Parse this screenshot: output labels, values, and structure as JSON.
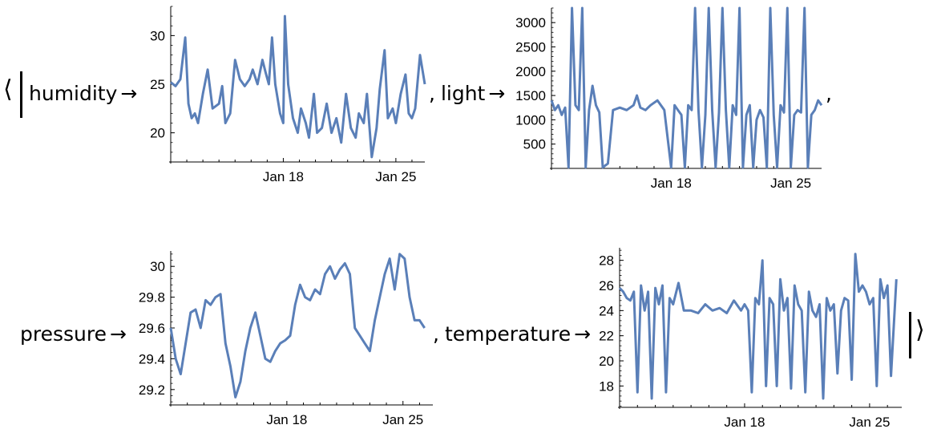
{
  "expression": {
    "open_bracket": "⟨",
    "close_bracket": "⟩",
    "arrow": "→",
    "comma": ",",
    "keys": {
      "humidity": "humidity",
      "light": "light",
      "pressure": "pressure",
      "temperature": "temperature"
    }
  },
  "style": {
    "line_color": "#5a7fb8",
    "axis_color": "#000000"
  },
  "chart_data": [
    {
      "type": "line",
      "key": "humidity",
      "xlim": [
        11.0,
        26.8
      ],
      "ylim": [
        17,
        33
      ],
      "yticks": [
        20,
        25,
        30
      ],
      "xticks": [
        {
          "value": 18,
          "label": "Jan 18"
        },
        {
          "value": 25,
          "label": "Jan 25"
        }
      ],
      "grid": false,
      "x": [
        11.0,
        11.3,
        11.6,
        11.9,
        12.1,
        12.3,
        12.5,
        12.7,
        13.0,
        13.3,
        13.6,
        14.0,
        14.2,
        14.4,
        14.7,
        15.0,
        15.3,
        15.6,
        15.9,
        16.1,
        16.4,
        16.7,
        16.9,
        17.1,
        17.3,
        17.5,
        17.8,
        18.0,
        18.1,
        18.3,
        18.6,
        18.9,
        19.1,
        19.4,
        19.6,
        19.9,
        20.1,
        20.4,
        20.7,
        21.0,
        21.3,
        21.6,
        21.9,
        22.2,
        22.5,
        22.7,
        23.0,
        23.2,
        23.5,
        23.8,
        24.0,
        24.3,
        24.5,
        24.8,
        25.0,
        25.3,
        25.6,
        25.8,
        26.0,
        26.2,
        26.5,
        26.8
      ],
      "values": [
        25.2,
        24.8,
        25.5,
        29.8,
        23.0,
        21.5,
        22.0,
        21.0,
        24.0,
        26.5,
        22.5,
        23.0,
        24.8,
        21.0,
        22.0,
        27.5,
        25.5,
        24.8,
        25.5,
        26.5,
        25.0,
        27.5,
        26.2,
        25.0,
        29.8,
        25.0,
        22.0,
        21.0,
        32.0,
        25.0,
        21.5,
        20.0,
        22.5,
        21.0,
        19.5,
        24.0,
        20.0,
        20.5,
        23.0,
        20.0,
        21.5,
        19.0,
        24.0,
        20.5,
        19.5,
        22.0,
        21.0,
        24.0,
        17.5,
        20.5,
        24.5,
        28.5,
        21.5,
        22.5,
        21.0,
        24.0,
        26.0,
        22.0,
        21.5,
        22.5,
        28.0,
        25.0
      ]
    },
    {
      "type": "line",
      "key": "light",
      "xlim": [
        11.0,
        26.8
      ],
      "ylim": [
        0,
        3300
      ],
      "yticks": [
        500,
        1000,
        1500,
        2000,
        2500,
        3000
      ],
      "xticks": [
        {
          "value": 18,
          "label": "Jan 18"
        },
        {
          "value": 25,
          "label": "Jan 25"
        }
      ],
      "grid": false,
      "x": [
        11.0,
        11.2,
        11.4,
        11.6,
        11.8,
        12.0,
        12.2,
        12.4,
        12.6,
        12.8,
        13.0,
        13.2,
        13.4,
        13.6,
        13.8,
        14.0,
        14.3,
        14.6,
        15.0,
        15.4,
        15.8,
        16.0,
        16.2,
        16.5,
        16.8,
        17.2,
        17.6,
        18.0,
        18.2,
        18.4,
        18.6,
        18.8,
        19.0,
        19.2,
        19.4,
        19.6,
        19.8,
        20.0,
        20.2,
        20.4,
        20.6,
        20.8,
        21.0,
        21.2,
        21.4,
        21.6,
        21.8,
        22.0,
        22.2,
        22.4,
        22.6,
        22.8,
        23.0,
        23.2,
        23.4,
        23.6,
        23.8,
        24.0,
        24.2,
        24.4,
        24.6,
        24.8,
        25.0,
        25.2,
        25.4,
        25.6,
        25.8,
        26.0,
        26.2,
        26.4,
        26.6,
        26.8
      ],
      "values": [
        1400,
        1200,
        1300,
        1100,
        1250,
        20,
        3300,
        1300,
        1200,
        3300,
        20,
        1200,
        1700,
        1300,
        1150,
        20,
        100,
        1200,
        1250,
        1200,
        1300,
        1500,
        1250,
        1200,
        1300,
        1400,
        1200,
        20,
        1300,
        1200,
        1100,
        20,
        1300,
        1200,
        3300,
        1200,
        20,
        1100,
        3300,
        1200,
        20,
        1150,
        3300,
        1200,
        20,
        1300,
        1100,
        3300,
        20,
        1100,
        1300,
        20,
        1000,
        1200,
        1050,
        20,
        3300,
        1100,
        20,
        1300,
        1150,
        3300,
        20,
        1100,
        1200,
        1150,
        3300,
        20,
        1100,
        1200,
        1400,
        1300
      ]
    },
    {
      "type": "line",
      "key": "pressure",
      "xlim": [
        11.0,
        26.8
      ],
      "ylim": [
        29.1,
        30.1
      ],
      "yticks": [
        29.2,
        29.4,
        29.6,
        29.8,
        30.0
      ],
      "xticks": [
        {
          "value": 18,
          "label": "Jan 18"
        },
        {
          "value": 25,
          "label": "Jan 25"
        }
      ],
      "grid": false,
      "x": [
        11.0,
        11.3,
        11.6,
        11.9,
        12.2,
        12.5,
        12.8,
        13.1,
        13.4,
        13.7,
        14.0,
        14.3,
        14.6,
        14.9,
        15.2,
        15.5,
        15.8,
        16.1,
        16.4,
        16.7,
        17.0,
        17.3,
        17.6,
        17.9,
        18.2,
        18.5,
        18.8,
        19.1,
        19.4,
        19.7,
        20.0,
        20.3,
        20.6,
        20.9,
        21.2,
        21.5,
        21.8,
        22.1,
        22.4,
        22.7,
        23.0,
        23.3,
        23.6,
        23.9,
        24.2,
        24.5,
        24.8,
        25.1,
        25.4,
        25.7,
        26.0,
        26.3
      ],
      "values": [
        29.6,
        29.4,
        29.3,
        29.5,
        29.7,
        29.72,
        29.6,
        29.78,
        29.75,
        29.8,
        29.82,
        29.5,
        29.35,
        29.15,
        29.25,
        29.45,
        29.6,
        29.7,
        29.55,
        29.4,
        29.38,
        29.45,
        29.5,
        29.52,
        29.55,
        29.75,
        29.88,
        29.8,
        29.78,
        29.85,
        29.82,
        29.95,
        30.0,
        29.92,
        29.98,
        30.02,
        29.95,
        29.6,
        29.55,
        29.5,
        29.45,
        29.65,
        29.8,
        29.95,
        30.05,
        29.85,
        30.08,
        30.05,
        29.8,
        29.65,
        29.65,
        29.6
      ]
    },
    {
      "type": "line",
      "key": "temperature",
      "xlim": [
        11.0,
        26.8
      ],
      "ylim": [
        16.3,
        29.0
      ],
      "yticks": [
        18,
        20,
        22,
        24,
        26,
        28
      ],
      "xticks": [
        {
          "value": 18,
          "label": "Jan 18"
        },
        {
          "value": 25,
          "label": "Jan 25"
        }
      ],
      "grid": false,
      "x": [
        11.0,
        11.2,
        11.4,
        11.6,
        11.8,
        12.0,
        12.2,
        12.4,
        12.6,
        12.8,
        13.0,
        13.2,
        13.4,
        13.6,
        13.8,
        14.0,
        14.3,
        14.6,
        15.0,
        15.4,
        15.8,
        16.2,
        16.6,
        17.0,
        17.4,
        17.8,
        18.0,
        18.2,
        18.4,
        18.6,
        18.8,
        19.0,
        19.2,
        19.4,
        19.6,
        19.8,
        20.0,
        20.2,
        20.4,
        20.6,
        20.8,
        21.0,
        21.2,
        21.4,
        21.6,
        21.8,
        22.0,
        22.2,
        22.4,
        22.6,
        22.8,
        23.0,
        23.2,
        23.4,
        23.6,
        23.8,
        24.0,
        24.2,
        24.4,
        24.6,
        24.8,
        25.0,
        25.2,
        25.4,
        25.6,
        25.8,
        26.0,
        26.2,
        26.5
      ],
      "values": [
        25.8,
        25.5,
        25.0,
        24.8,
        25.5,
        17.5,
        26.0,
        24.0,
        25.5,
        17.0,
        25.8,
        24.5,
        26.0,
        17.5,
        25.0,
        24.5,
        26.2,
        24.0,
        24.0,
        23.8,
        24.5,
        24.0,
        24.2,
        23.8,
        24.8,
        24.0,
        24.5,
        24.0,
        17.5,
        25.0,
        24.5,
        28.0,
        18.0,
        25.0,
        24.5,
        18.0,
        26.5,
        24.0,
        25.0,
        17.8,
        26.0,
        24.5,
        24.0,
        17.5,
        25.5,
        24.0,
        23.5,
        24.5,
        17.0,
        25.0,
        24.0,
        24.5,
        19.0,
        24.0,
        25.0,
        24.8,
        18.5,
        28.5,
        25.5,
        26.0,
        25.5,
        24.5,
        25.0,
        18.0,
        26.5,
        25.0,
        26.0,
        18.8,
        26.5
      ]
    }
  ]
}
